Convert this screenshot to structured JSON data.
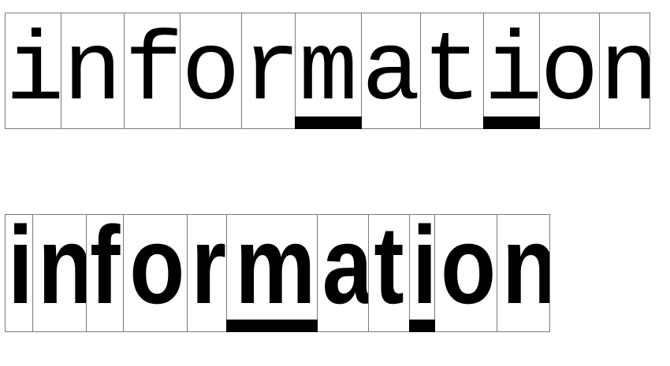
{
  "top_row": {
    "word": "information",
    "letters": [
      "i",
      "n",
      "f",
      "o",
      "r",
      "m",
      "a",
      "t",
      "i",
      "o",
      "n"
    ],
    "highlighted_letters": [
      "m",
      "i"
    ]
  },
  "bottom_row": {
    "word": "information",
    "letters": [
      "i",
      "n",
      "f",
      "o",
      "r",
      "m",
      "a",
      "t",
      "i",
      "o",
      "n"
    ],
    "highlighted_letters": [
      "m",
      "i"
    ]
  },
  "colors": {
    "ink": "#000000",
    "cell_border": "#7a7a7a",
    "background": "#ffffff"
  }
}
